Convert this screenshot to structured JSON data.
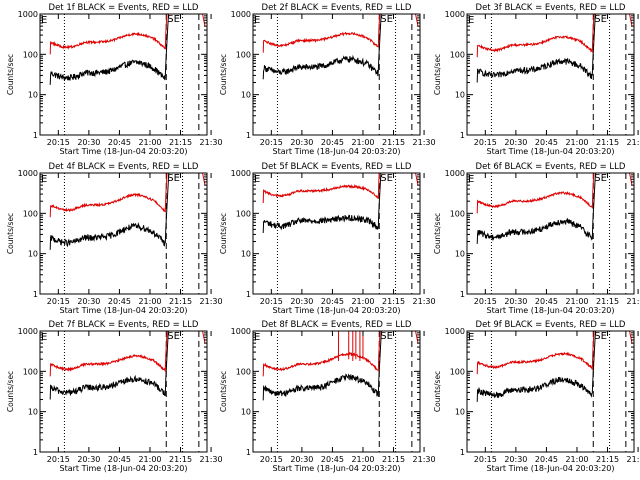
{
  "colors": {
    "events": "#000000",
    "lld": "#e00000",
    "axis": "#000000",
    "background": "#ffffff"
  },
  "shared": {
    "ylabel": "Counts/sec",
    "xlabel": "Start Time (18-Jun-04 20:03:20)",
    "y_tick_labels": [
      "1",
      "10",
      "100",
      "1000"
    ],
    "x_tick_labels": [
      "20:15",
      "20:30",
      "20:45",
      "21:00",
      "21:15",
      "21:30"
    ],
    "marker_labels": [
      "E",
      "SE"
    ]
  },
  "chart_data": [
    {
      "type": "line",
      "title": "Det 1f BLACK = Events, RED = LLD",
      "ylim": [
        1,
        1000
      ],
      "xlim_min": [
        6,
        88
      ],
      "yscale": "log",
      "series": [
        {
          "name": "Events",
          "color": "#000000",
          "base": 35,
          "amp": 1.8
        },
        {
          "name": "LLD",
          "color": "#e00000",
          "base": 200,
          "amp": 1.6
        }
      ],
      "vlines_min": [
        {
          "t": 18,
          "style": "dotted"
        },
        {
          "t": 68,
          "style": "dashed"
        },
        {
          "t": 76,
          "style": "dotted"
        },
        {
          "t": 84,
          "style": "dashed"
        }
      ],
      "labels": [
        "E",
        "SE"
      ]
    },
    {
      "type": "line",
      "title": "Det 2f BLACK = Events, RED = LLD",
      "ylim": [
        1,
        1000
      ],
      "xlim_min": [
        6,
        88
      ],
      "yscale": "log",
      "series": [
        {
          "name": "Events",
          "color": "#000000",
          "base": 48,
          "amp": 1.6
        },
        {
          "name": "LLD",
          "color": "#e00000",
          "base": 220,
          "amp": 1.5
        }
      ],
      "vlines_min": [
        {
          "t": 18,
          "style": "dotted"
        },
        {
          "t": 68,
          "style": "dashed"
        },
        {
          "t": 76,
          "style": "dotted"
        },
        {
          "t": 84,
          "style": "dashed"
        }
      ],
      "labels": [
        "E",
        "SE"
      ]
    },
    {
      "type": "line",
      "title": "Det 3f BLACK = Events, RED = LLD",
      "ylim": [
        1,
        1000
      ],
      "xlim_min": [
        6,
        88
      ],
      "yscale": "log",
      "series": [
        {
          "name": "Events",
          "color": "#000000",
          "base": 40,
          "amp": 1.7
        },
        {
          "name": "LLD",
          "color": "#e00000",
          "base": 170,
          "amp": 1.6
        }
      ],
      "vlines_min": [
        {
          "t": 18,
          "style": "dotted"
        },
        {
          "t": 68,
          "style": "dashed"
        },
        {
          "t": 76,
          "style": "dotted"
        },
        {
          "t": 84,
          "style": "dashed"
        }
      ],
      "labels": [
        "E",
        "SE"
      ]
    },
    {
      "type": "line",
      "title": "Det 4f BLACK = Events, RED = LLD",
      "ylim": [
        1,
        1000
      ],
      "xlim_min": [
        6,
        88
      ],
      "yscale": "log",
      "series": [
        {
          "name": "Events",
          "color": "#000000",
          "base": 25,
          "amp": 1.9
        },
        {
          "name": "LLD",
          "color": "#e00000",
          "base": 160,
          "amp": 1.8
        }
      ],
      "vlines_min": [
        {
          "t": 18,
          "style": "dotted"
        },
        {
          "t": 68,
          "style": "dashed"
        },
        {
          "t": 76,
          "style": "dotted"
        },
        {
          "t": 84,
          "style": "dashed"
        }
      ],
      "labels": [
        "E",
        "SE"
      ]
    },
    {
      "type": "line",
      "title": "Det 5f BLACK = Events, RED = LLD",
      "ylim": [
        1,
        1000
      ],
      "xlim_min": [
        6,
        88
      ],
      "yscale": "log",
      "series": [
        {
          "name": "Events",
          "color": "#000000",
          "base": 65,
          "amp": 1.2
        },
        {
          "name": "LLD",
          "color": "#e00000",
          "base": 360,
          "amp": 1.3
        }
      ],
      "vlines_min": [
        {
          "t": 18,
          "style": "dotted"
        },
        {
          "t": 68,
          "style": "dashed"
        },
        {
          "t": 76,
          "style": "dotted"
        },
        {
          "t": 84,
          "style": "dashed"
        }
      ],
      "labels": [
        "E",
        "SE"
      ]
    },
    {
      "type": "line",
      "title": "Det 6f BLACK = Events, RED = LLD",
      "ylim": [
        1,
        1000
      ],
      "xlim_min": [
        6,
        88
      ],
      "yscale": "log",
      "series": [
        {
          "name": "Events",
          "color": "#000000",
          "base": 35,
          "amp": 1.8
        },
        {
          "name": "LLD",
          "color": "#e00000",
          "base": 200,
          "amp": 1.6
        }
      ],
      "vlines_min": [
        {
          "t": 18,
          "style": "dotted"
        },
        {
          "t": 68,
          "style": "dashed"
        },
        {
          "t": 76,
          "style": "dotted"
        },
        {
          "t": 84,
          "style": "dashed"
        }
      ],
      "labels": [
        "E",
        "SE"
      ]
    },
    {
      "type": "line",
      "title": "Det 7f BLACK = Events, RED = LLD",
      "ylim": [
        1,
        1000
      ],
      "xlim_min": [
        6,
        88
      ],
      "yscale": "log",
      "series": [
        {
          "name": "Events",
          "color": "#000000",
          "base": 40,
          "amp": 1.6
        },
        {
          "name": "LLD",
          "color": "#e00000",
          "base": 150,
          "amp": 1.6
        }
      ],
      "vlines_min": [
        {
          "t": 18,
          "style": "dotted"
        },
        {
          "t": 68,
          "style": "dashed"
        },
        {
          "t": 76,
          "style": "dotted"
        },
        {
          "t": 84,
          "style": "dashed"
        }
      ],
      "labels": [
        "E",
        "SE"
      ]
    },
    {
      "type": "line",
      "title": "Det 8f BLACK = Events, RED = LLD",
      "ylim": [
        1,
        1000
      ],
      "xlim_min": [
        6,
        88
      ],
      "yscale": "log",
      "series": [
        {
          "name": "Events",
          "color": "#000000",
          "base": 38,
          "amp": 1.9
        },
        {
          "name": "LLD",
          "color": "#e00000",
          "base": 150,
          "amp": 1.8
        }
      ],
      "vlines_min": [
        {
          "t": 18,
          "style": "dotted"
        },
        {
          "t": 68,
          "style": "dashed"
        },
        {
          "t": 76,
          "style": "dotted"
        },
        {
          "t": 84,
          "style": "dashed"
        }
      ],
      "labels": [
        "E",
        "SE"
      ]
    },
    {
      "type": "line",
      "title": "Det 9f BLACK = Events, RED = LLD",
      "ylim": [
        1,
        1000
      ],
      "xlim_min": [
        6,
        88
      ],
      "yscale": "log",
      "series": [
        {
          "name": "Events",
          "color": "#000000",
          "base": 35,
          "amp": 1.8
        },
        {
          "name": "LLD",
          "color": "#e00000",
          "base": 170,
          "amp": 1.6
        }
      ],
      "vlines_min": [
        {
          "t": 18,
          "style": "dotted"
        },
        {
          "t": 68,
          "style": "dashed"
        },
        {
          "t": 76,
          "style": "dotted"
        },
        {
          "t": 84,
          "style": "dashed"
        }
      ],
      "labels": [
        "E",
        "SE"
      ]
    }
  ]
}
